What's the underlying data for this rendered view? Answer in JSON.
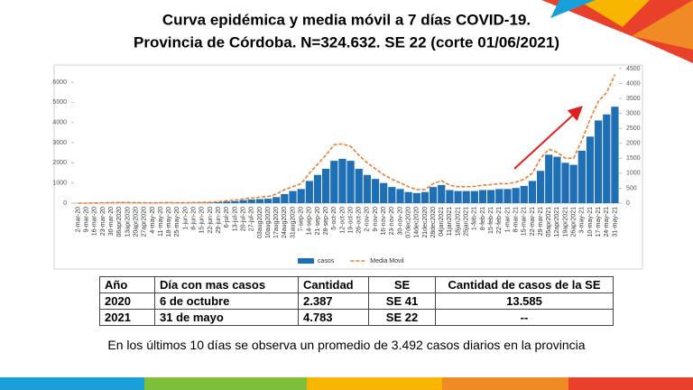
{
  "chart_data": {
    "type": "bar",
    "title": "Curva epidémica y media móvil a 7 días COVID-19.",
    "subtitle": "Provincia de Córdoba. N=324.632. SE 22 (corte 01/06/2021)",
    "categories": [
      "2-mar-20",
      "9-mar-20",
      "16-mar-20",
      "23-mar-20",
      "30-mar-20",
      "06apr2020",
      "13apr2020",
      "20apr2020",
      "27apr2020",
      "4-may-20",
      "11-may-20",
      "18-may-20",
      "25-may-20",
      "1-jun-20",
      "8-jun-20",
      "15-jun-20",
      "22-jun-20",
      "29-jun-20",
      "6-jul-20",
      "13-jul-20",
      "20-jul-20",
      "27-jul-20",
      "03aug2020",
      "10aug2020",
      "17aug2020",
      "24aug2020",
      "31aug2020",
      "7-sep-20",
      "14-sep-20",
      "21-sep-20",
      "28-sep-20",
      "5-oct-20",
      "12-oct-20",
      "19-oct-20",
      "26-oct-20",
      "2-nov-20",
      "9-nov-20",
      "16-nov-20",
      "23-nov-20",
      "30-nov-20",
      "07dec2020",
      "14dec2020",
      "21dec2020",
      "28dec2020",
      "04jan2021",
      "11jan2021",
      "18jan2021",
      "25jan2021",
      "1-feb-21",
      "8-feb-21",
      "15-feb-21",
      "22-feb-21",
      "1-mar-21",
      "8-mar-21",
      "15-mar-21",
      "22-mar-21",
      "29-mar-21",
      "05apr2021",
      "12apr2021",
      "19apr2021",
      "26apr2021",
      "3-may-21",
      "10-may-21",
      "17-may-21",
      "24-may-21",
      "31-may-21"
    ],
    "series": [
      {
        "name": "casos",
        "color": "#1f6fb5",
        "values": [
          0,
          0,
          5,
          10,
          15,
          20,
          20,
          15,
          10,
          10,
          15,
          20,
          15,
          15,
          20,
          25,
          30,
          50,
          80,
          100,
          150,
          180,
          200,
          220,
          300,
          450,
          600,
          700,
          1100,
          1400,
          1700,
          2100,
          2200,
          2100,
          1700,
          1400,
          1200,
          1000,
          800,
          700,
          550,
          500,
          550,
          800,
          900,
          650,
          600,
          600,
          600,
          650,
          650,
          700,
          700,
          750,
          850,
          1100,
          1600,
          2400,
          2300,
          2000,
          1900,
          2600,
          3300,
          4100,
          4400,
          4783
        ]
      },
      {
        "name": "Media Movil",
        "color": "#ed7d31",
        "type": "line",
        "axis": "y2",
        "values": [
          0,
          0,
          5,
          10,
          15,
          20,
          20,
          15,
          10,
          10,
          15,
          20,
          15,
          15,
          20,
          25,
          30,
          50,
          80,
          100,
          140,
          170,
          200,
          220,
          300,
          450,
          550,
          650,
          1000,
          1300,
          1600,
          1950,
          1980,
          1900,
          1600,
          1350,
          1150,
          950,
          800,
          680,
          550,
          450,
          450,
          650,
          750,
          600,
          550,
          550,
          560,
          600,
          620,
          650,
          650,
          700,
          800,
          1000,
          1500,
          1800,
          1700,
          1500,
          1500,
          2100,
          2800,
          3400,
          3700,
          4300
        ]
      }
    ],
    "ylim": [
      0,
      6000
    ],
    "yticks": [
      0,
      1000,
      2000,
      3000,
      4000,
      5000,
      6000
    ],
    "y2lim": [
      0,
      4500
    ],
    "y2ticks": [
      0,
      500,
      1000,
      1500,
      2000,
      2500,
      3000,
      3500,
      4000,
      4500
    ],
    "legend": "bottom"
  },
  "table": {
    "header": [
      "Año",
      "Día con mas casos",
      "Cantidad",
      "SE",
      "Cantidad de casos de la SE"
    ],
    "rows": [
      [
        "2020",
        "6 de octubre",
        "2.387",
        "SE 41",
        "13.585"
      ],
      [
        "2021",
        "31 de mayo",
        "4.783",
        "SE 22",
        "--"
      ]
    ]
  },
  "footer": {
    "text": "En los últimos 10 días se observa un promedio de 3.492 casos diarios en la provincia"
  }
}
